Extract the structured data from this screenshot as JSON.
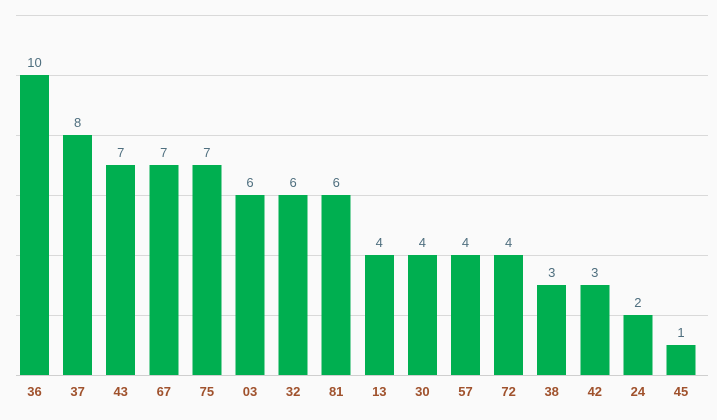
{
  "colors": {
    "bar": "#00af50",
    "value_label": "#4f6f7f",
    "tick_label": "#a0522d",
    "grid": "#d9d9d9",
    "background": "#fafafa"
  },
  "chart_data": {
    "type": "bar",
    "title": "",
    "xlabel": "",
    "ylabel": "",
    "categories": [
      "36",
      "37",
      "43",
      "67",
      "75",
      "03",
      "32",
      "81",
      "13",
      "30",
      "57",
      "72",
      "38",
      "42",
      "24",
      "45"
    ],
    "values": [
      10,
      8,
      7,
      7,
      7,
      6,
      6,
      6,
      4,
      4,
      4,
      4,
      3,
      3,
      2,
      1
    ],
    "ylim": [
      0,
      12
    ],
    "grid": true,
    "grid_step": 2,
    "legend": "none",
    "data_labels": true
  }
}
